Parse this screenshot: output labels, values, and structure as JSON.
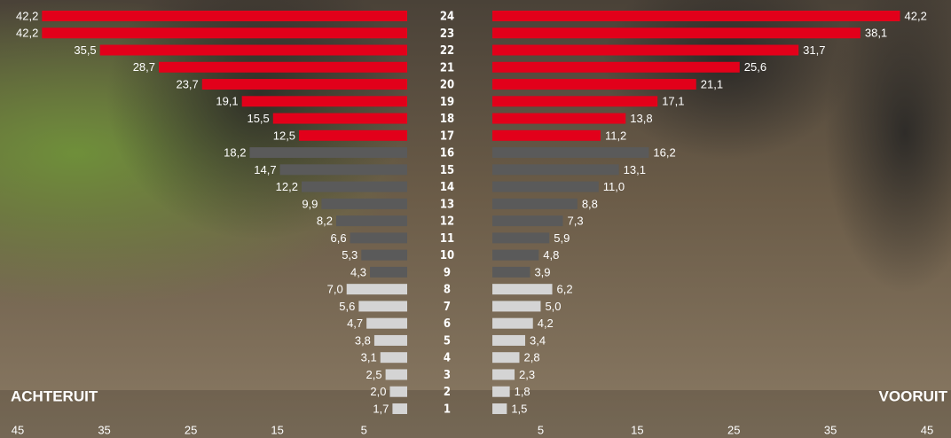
{
  "chart_data": {
    "type": "butterfly",
    "categories": [
      "24",
      "23",
      "22",
      "21",
      "20",
      "19",
      "18",
      "17",
      "16",
      "15",
      "14",
      "13",
      "12",
      "11",
      "10",
      "9",
      "8",
      "7",
      "6",
      "5",
      "4",
      "3",
      "2",
      "1"
    ],
    "colors": [
      "#e2001a",
      "#e2001a",
      "#e2001a",
      "#e2001a",
      "#e2001a",
      "#e2001a",
      "#e2001a",
      "#e2001a",
      "#5a5a5a",
      "#5a5a5a",
      "#5a5a5a",
      "#5a5a5a",
      "#5a5a5a",
      "#5a5a5a",
      "#5a5a5a",
      "#5a5a5a",
      "#d4d4d4",
      "#d4d4d4",
      "#d4d4d4",
      "#d4d4d4",
      "#d4d4d4",
      "#d4d4d4",
      "#d4d4d4",
      "#d4d4d4"
    ],
    "series": [
      {
        "name": "ACHTERUIT",
        "values": [
          42.2,
          42.2,
          35.5,
          28.7,
          23.7,
          19.1,
          15.5,
          12.5,
          18.2,
          14.7,
          12.2,
          9.9,
          8.2,
          6.6,
          5.3,
          4.3,
          7.0,
          5.6,
          4.7,
          3.8,
          3.1,
          2.5,
          2.0,
          1.7
        ],
        "value_labels": [
          "42,2",
          "42,2",
          "35,5",
          "28,7",
          "23,7",
          "19,1",
          "15,5",
          "12,5",
          "18,2",
          "14,7",
          "12,2",
          "9,9",
          "8,2",
          "6,6",
          "5,3",
          "4,3",
          "7,0",
          "5,6",
          "4,7",
          "3,8",
          "3,1",
          "2,5",
          "2,0",
          "1,7"
        ],
        "xlim": [
          0,
          45
        ],
        "xticks": [
          45,
          35,
          25,
          15,
          5
        ]
      },
      {
        "name": "VOORUIT",
        "values": [
          42.2,
          38.1,
          31.7,
          25.6,
          21.1,
          17.1,
          13.8,
          11.2,
          16.2,
          13.1,
          11.0,
          8.8,
          7.3,
          5.9,
          4.8,
          3.9,
          6.2,
          5.0,
          4.2,
          3.4,
          2.8,
          2.3,
          1.8,
          1.5
        ],
        "value_labels": [
          "42,2",
          "38,1",
          "31,7",
          "25,6",
          "21,1",
          "17,1",
          "13,8",
          "11,2",
          "16,2",
          "13,1",
          "11,0",
          "8,8",
          "7,3",
          "5,9",
          "4,8",
          "3,9",
          "6,2",
          "5,0",
          "4,2",
          "3,4",
          "2,8",
          "2,3",
          "1,8",
          "1,5"
        ],
        "xlim": [
          0,
          45
        ],
        "xticks": [
          5,
          15,
          25,
          35,
          45
        ]
      }
    ]
  }
}
